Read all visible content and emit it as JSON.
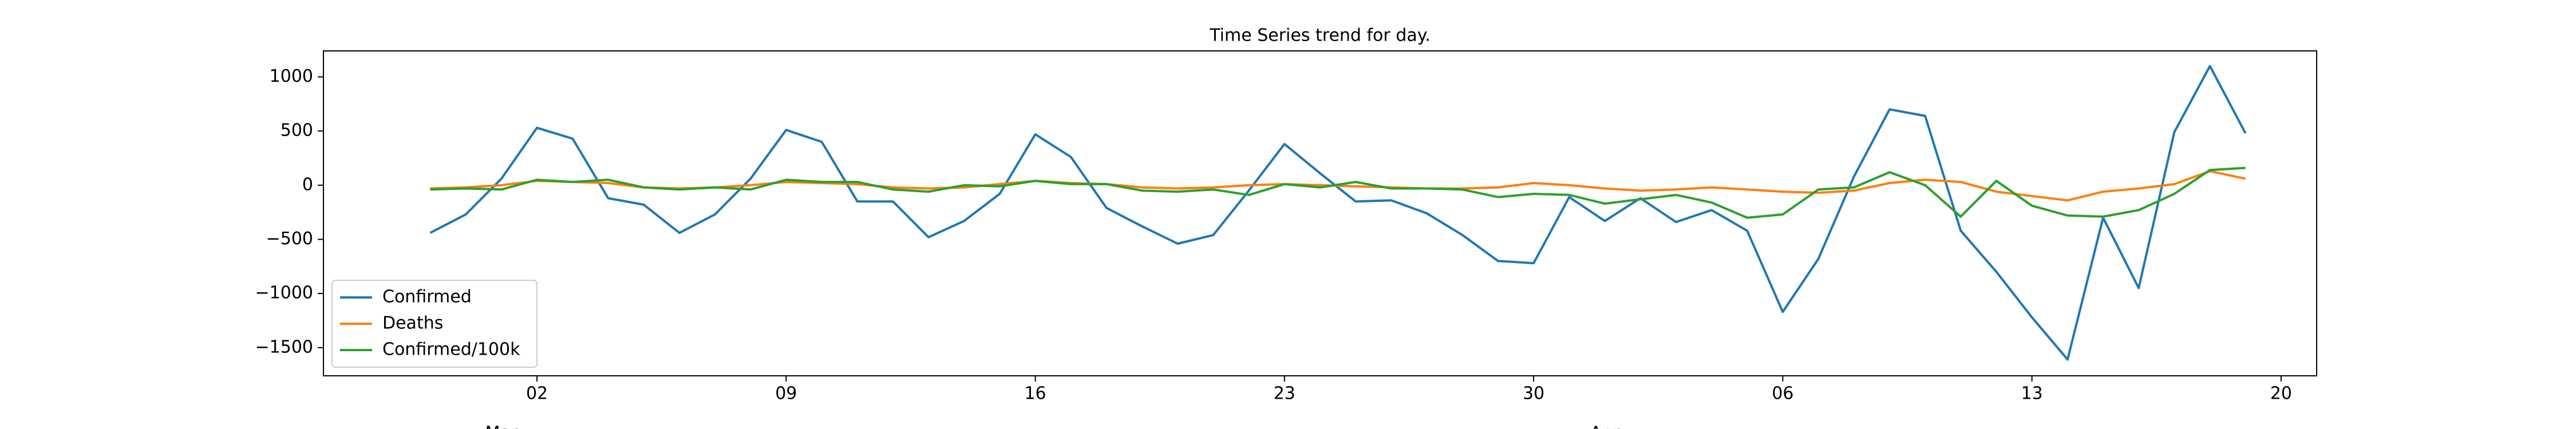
{
  "chart_data": {
    "type": "line",
    "title": "Time Series trend for day.",
    "x": [
      "Feb 28",
      "Feb 29",
      "Mar 01",
      "Mar 02",
      "Mar 03",
      "Mar 04",
      "Mar 05",
      "Mar 06",
      "Mar 07",
      "Mar 08",
      "Mar 09",
      "Mar 10",
      "Mar 11",
      "Mar 12",
      "Mar 13",
      "Mar 14",
      "Mar 15",
      "Mar 16",
      "Mar 17",
      "Mar 18",
      "Mar 19",
      "Mar 20",
      "Mar 21",
      "Mar 22",
      "Mar 23",
      "Mar 24",
      "Mar 25",
      "Mar 26",
      "Mar 27",
      "Mar 28",
      "Mar 29",
      "Mar 30",
      "Mar 31",
      "Apr 01",
      "Apr 02",
      "Apr 03",
      "Apr 04",
      "Apr 05",
      "Apr 06",
      "Apr 07",
      "Apr 08",
      "Apr 09",
      "Apr 10",
      "Apr 11",
      "Apr 12",
      "Apr 13",
      "Apr 14",
      "Apr 15",
      "Apr 16",
      "Apr 17",
      "Apr 18",
      "Apr 19"
    ],
    "series": [
      {
        "name": "Confirmed",
        "color": "#1f77b4",
        "values": [
          -440,
          -270,
          60,
          530,
          430,
          -120,
          -180,
          -440,
          -270,
          60,
          510,
          400,
          -150,
          -150,
          -480,
          -330,
          -80,
          470,
          260,
          -210,
          -380,
          -540,
          -460,
          -50,
          380,
          110,
          -150,
          -140,
          -260,
          -460,
          -700,
          -720,
          -110,
          -330,
          -120,
          -340,
          -230,
          -420,
          -1170,
          -680,
          80,
          700,
          640,
          -420,
          -800,
          -1220,
          -1610,
          -300,
          -950,
          490,
          1100,
          480
        ]
      },
      {
        "name": "Deaths",
        "color": "#ff7f0e",
        "values": [
          -30,
          -20,
          0,
          40,
          30,
          20,
          -20,
          -30,
          -20,
          0,
          30,
          20,
          10,
          -20,
          -30,
          -20,
          10,
          40,
          20,
          10,
          -20,
          -30,
          -20,
          0,
          10,
          0,
          -10,
          -20,
          -30,
          -30,
          -20,
          20,
          0,
          -30,
          -50,
          -40,
          -20,
          -40,
          -60,
          -70,
          -50,
          20,
          50,
          30,
          -60,
          -100,
          -140,
          -60,
          -30,
          10,
          130,
          60
        ]
      },
      {
        "name": "Confirmed/100k",
        "color": "#2ca02c",
        "values": [
          -40,
          -30,
          -40,
          50,
          30,
          50,
          -20,
          -40,
          -20,
          -40,
          50,
          30,
          30,
          -40,
          -60,
          0,
          -10,
          40,
          10,
          10,
          -50,
          -60,
          -40,
          -90,
          10,
          -20,
          30,
          -30,
          -30,
          -40,
          -110,
          -80,
          -90,
          -170,
          -130,
          -90,
          -160,
          -300,
          -270,
          -40,
          -20,
          120,
          0,
          -290,
          40,
          -190,
          -280,
          -290,
          -230,
          -80,
          140,
          160
        ]
      }
    ],
    "xlim": [
      "Feb 25",
      "Apr 21"
    ],
    "xticks": [
      {
        "value": "Mar 02",
        "label": "02"
      },
      {
        "value": "Mar 09",
        "label": "09"
      },
      {
        "value": "Mar 16",
        "label": "16"
      },
      {
        "value": "Mar 23",
        "label": "23"
      },
      {
        "value": "Mar 30",
        "label": "30"
      },
      {
        "value": "Apr 06",
        "label": "06"
      },
      {
        "value": "Apr 13",
        "label": "13"
      },
      {
        "value": "Apr 20",
        "label": "20"
      }
    ],
    "xtick_groups": [
      {
        "value": "Mar 01",
        "label": "Mar"
      },
      {
        "value": "Apr 01",
        "label": "Apr"
      }
    ],
    "ylim": [
      -1760,
      1240
    ],
    "yticks": [
      {
        "value": -1500,
        "label": "−1500"
      },
      {
        "value": -1000,
        "label": "−1000"
      },
      {
        "value": -500,
        "label": "−500"
      },
      0,
      500,
      1000
    ],
    "legend": "lower left"
  }
}
